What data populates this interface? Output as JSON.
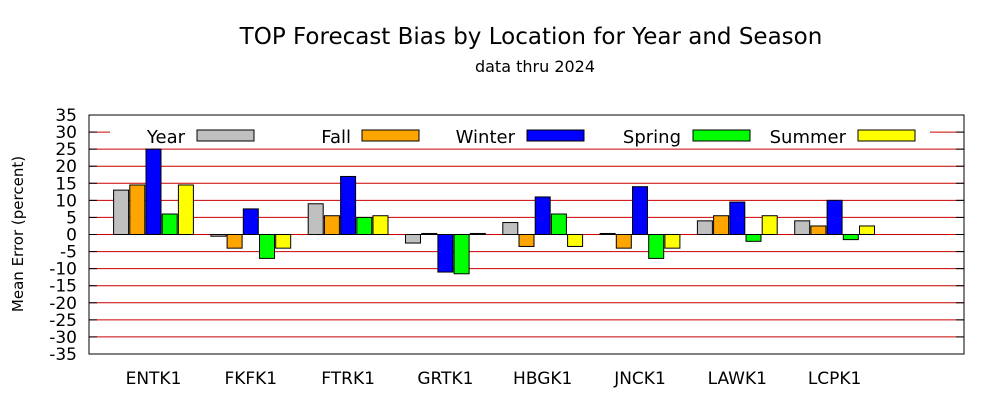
{
  "chart_data": {
    "type": "bar",
    "title": "TOP Forecast Bias by Location for Year and Season",
    "subtitle": "data thru 2024",
    "xlabel": "",
    "ylabel": "Mean Error (percent)",
    "ylim": [
      -35,
      35
    ],
    "yticks": [
      35,
      30,
      25,
      20,
      15,
      10,
      5,
      0,
      -5,
      -10,
      -15,
      -20,
      -25,
      -30,
      -35
    ],
    "grid": "horizontal",
    "legend_position": "top",
    "categories": [
      "ENTK1",
      "FKFK1",
      "FTRK1",
      "GRTK1",
      "HBGK1",
      "JNCK1",
      "LAWK1",
      "LCPK1"
    ],
    "series": [
      {
        "name": "Year",
        "color": "#c0c0c0",
        "values": [
          13,
          -0.5,
          9,
          -2.5,
          3.5,
          0.3,
          4,
          4
        ]
      },
      {
        "name": "Fall",
        "color": "#ffa500",
        "values": [
          14.5,
          -4,
          5.5,
          0.3,
          -3.5,
          -4,
          5.5,
          2.5
        ]
      },
      {
        "name": "Winter",
        "color": "#0000ff",
        "values": [
          25,
          7.5,
          17,
          -11,
          11,
          14,
          9.5,
          10
        ]
      },
      {
        "name": "Spring",
        "color": "#00ff00",
        "values": [
          6,
          -7,
          5,
          -11.5,
          6,
          -7,
          -2,
          -1.5
        ]
      },
      {
        "name": "Summer",
        "color": "#ffff00",
        "values": [
          14.5,
          -4,
          5.5,
          0.3,
          -3.5,
          -4,
          5.5,
          2.5
        ]
      }
    ],
    "gridline_color": "#cc0000"
  }
}
